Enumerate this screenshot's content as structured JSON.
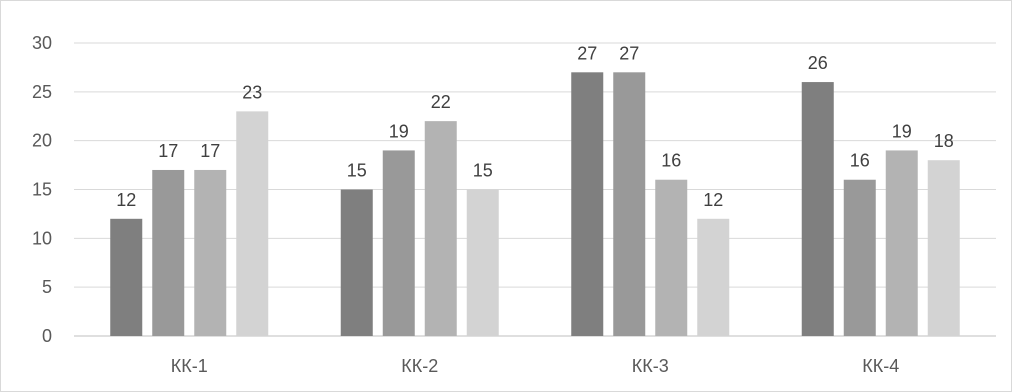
{
  "chart_data": {
    "type": "bar",
    "categories": [
      "КК-1",
      "КК-2",
      "КК-3",
      "КК-4"
    ],
    "series": [
      {
        "values": [
          12,
          15,
          27,
          26
        ],
        "color": "#7f7f7f"
      },
      {
        "values": [
          17,
          19,
          27,
          16
        ],
        "color": "#999999"
      },
      {
        "values": [
          17,
          22,
          16,
          19
        ],
        "color": "#b3b3b3"
      },
      {
        "values": [
          23,
          15,
          12,
          18
        ],
        "color": "#d3d3d3"
      }
    ],
    "title": "",
    "xlabel": "",
    "ylabel": "",
    "ylim": [
      0,
      30
    ],
    "yticks": [
      0,
      5,
      10,
      15,
      20,
      25,
      30
    ],
    "grid": true,
    "gridColor": "#d9d9d9",
    "legend": "none",
    "data_labels": true
  }
}
